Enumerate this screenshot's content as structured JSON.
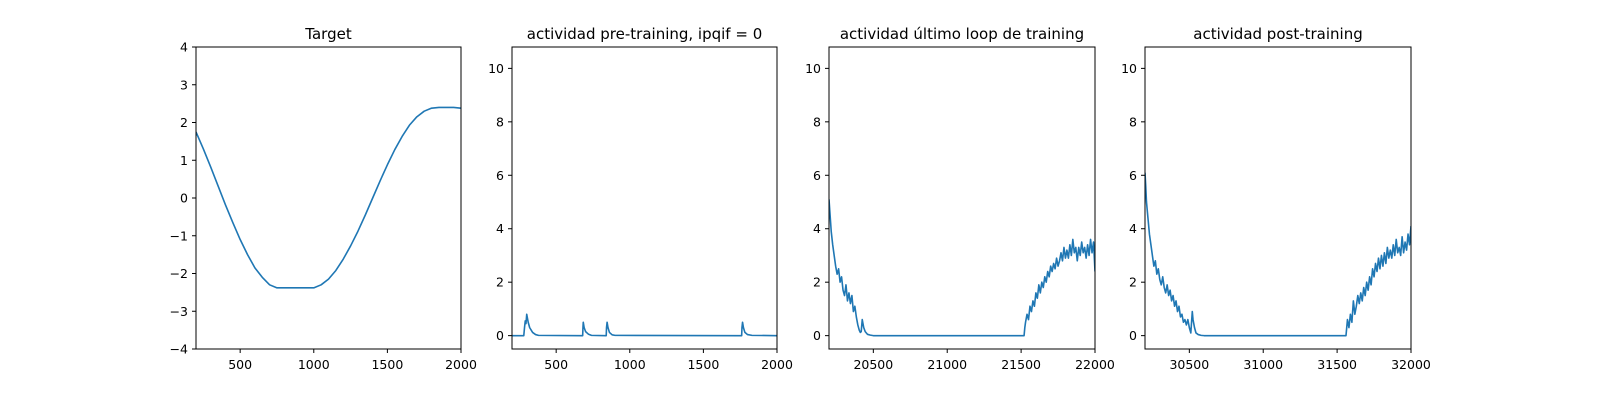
{
  "chart_data": [
    {
      "type": "line",
      "title": "Target",
      "xlabel": "",
      "ylabel": "",
      "xlim": [
        200,
        2000
      ],
      "ylim": [
        -4,
        4
      ],
      "xticks": [
        500,
        1000,
        1500,
        2000
      ],
      "yticks": [
        -4,
        -3,
        -2,
        -1,
        0,
        1,
        2,
        3,
        4
      ],
      "grid": false,
      "color": "#1f77b4",
      "series": [
        {
          "x": [
            200,
            250,
            300,
            350,
            400,
            450,
            500,
            550,
            600,
            650,
            700,
            750,
            800,
            850,
            900,
            950,
            1000,
            1050,
            1100,
            1150,
            1200,
            1250,
            1300,
            1350,
            1400,
            1450,
            1500,
            1550,
            1600,
            1650,
            1700,
            1750,
            1800,
            1850,
            1900,
            1950,
            2000
          ],
          "y": [
            1.75,
            1.3,
            0.82,
            0.32,
            -0.18,
            -0.65,
            -1.1,
            -1.5,
            -1.85,
            -2.1,
            -2.3,
            -2.38,
            -2.38,
            -2.38,
            -2.38,
            -2.38,
            -2.38,
            -2.3,
            -2.15,
            -1.92,
            -1.62,
            -1.27,
            -0.88,
            -0.45,
            0.0,
            0.45,
            0.88,
            1.28,
            1.63,
            1.93,
            2.15,
            2.3,
            2.38,
            2.4,
            2.4,
            2.4,
            2.38
          ]
        }
      ]
    },
    {
      "type": "line",
      "title": "actividad pre-training, ipqif = 0",
      "xlabel": "",
      "ylabel": "",
      "xlim": [
        200,
        2000
      ],
      "ylim": [
        -0.5,
        10.8
      ],
      "xticks": [
        500,
        1000,
        1500,
        2000
      ],
      "yticks": [
        0,
        2,
        4,
        6,
        8,
        10
      ],
      "grid": false,
      "color": "#1f77b4",
      "series": [
        {
          "x": [
            200,
            280,
            285,
            290,
            295,
            300,
            310,
            320,
            340,
            360,
            380,
            680,
            682,
            684,
            690,
            700,
            720,
            740,
            840,
            842,
            846,
            852,
            862,
            880,
            900,
            1760,
            1762,
            1766,
            1772,
            1782,
            1800,
            1830,
            2000
          ],
          "y": [
            0,
            0,
            0.3,
            0.55,
            0.45,
            0.8,
            0.5,
            0.3,
            0.12,
            0.04,
            0.01,
            0,
            0.3,
            0.5,
            0.3,
            0.15,
            0.05,
            0.01,
            0,
            0.3,
            0.5,
            0.3,
            0.12,
            0.03,
            0.01,
            0,
            0.3,
            0.5,
            0.3,
            0.12,
            0.04,
            0.01,
            0
          ]
        }
      ]
    },
    {
      "type": "line",
      "title": "actividad último loop de training",
      "xlabel": "",
      "ylabel": "",
      "xlim": [
        20200,
        22000
      ],
      "ylim": [
        -0.5,
        10.8
      ],
      "xticks": [
        20500,
        21000,
        21500,
        22000
      ],
      "yticks": [
        0,
        2,
        4,
        6,
        8,
        10
      ],
      "grid": false,
      "color": "#1f77b4",
      "series": [
        {
          "x": [
            20200,
            20205,
            20215,
            20225,
            20235,
            20245,
            20255,
            20265,
            20275,
            20285,
            20295,
            20305,
            20315,
            20325,
            20335,
            20345,
            20355,
            20365,
            20375,
            20385,
            20395,
            20405,
            20412,
            20418,
            20425,
            20435,
            20445,
            20460,
            20480,
            20500,
            20520,
            20550,
            21000,
            21400,
            21520,
            21525,
            21530,
            21540,
            21550,
            21560,
            21570,
            21580,
            21590,
            21600,
            21610,
            21620,
            21630,
            21640,
            21650,
            21660,
            21670,
            21680,
            21690,
            21700,
            21710,
            21720,
            21730,
            21740,
            21750,
            21760,
            21770,
            21780,
            21790,
            21800,
            21810,
            21820,
            21830,
            21840,
            21850,
            21860,
            21870,
            21880,
            21890,
            21900,
            21910,
            21920,
            21930,
            21940,
            21950,
            21960,
            21970,
            21980,
            21990,
            22000
          ],
          "y": [
            5.1,
            4.7,
            3.9,
            3.4,
            3.0,
            2.6,
            2.3,
            2.5,
            2.0,
            2.2,
            1.7,
            1.5,
            1.9,
            1.3,
            1.6,
            1.2,
            1.5,
            0.9,
            1.1,
            0.7,
            0.4,
            0.2,
            0.12,
            0.15,
            0.6,
            0.3,
            0.15,
            0.05,
            0.02,
            0,
            0,
            0,
            0,
            0,
            0,
            0.3,
            0.5,
            0.8,
            0.6,
            1.1,
            0.9,
            1.3,
            1.1,
            1.6,
            1.4,
            1.9,
            1.6,
            2.0,
            1.8,
            2.2,
            2.0,
            2.4,
            2.2,
            2.6,
            2.4,
            2.7,
            2.5,
            2.9,
            2.6,
            2.8,
            3.1,
            2.8,
            3.3,
            2.9,
            3.2,
            2.9,
            3.4,
            3.0,
            3.6,
            3.1,
            3.3,
            2.8,
            3.3,
            3.0,
            3.5,
            3.1,
            3.3,
            2.9,
            3.4,
            3.0,
            3.6,
            3.1,
            3.5,
            2.4
          ]
        }
      ]
    },
    {
      "type": "line",
      "title": "actividad post-training",
      "xlabel": "",
      "ylabel": "",
      "xlim": [
        30200,
        32000
      ],
      "ylim": [
        -0.5,
        10.8
      ],
      "xticks": [
        30500,
        31000,
        31500,
        32000
      ],
      "yticks": [
        0,
        2,
        4,
        6,
        8,
        10
      ],
      "grid": false,
      "color": "#1f77b4",
      "series": [
        {
          "x": [
            30200,
            30205,
            30210,
            30220,
            30230,
            30240,
            30250,
            30260,
            30270,
            30280,
            30290,
            30300,
            30310,
            30320,
            30330,
            30340,
            30350,
            30360,
            30370,
            30380,
            30390,
            30400,
            30410,
            30420,
            30430,
            30440,
            30450,
            30460,
            30470,
            30480,
            30490,
            30500,
            30510,
            30515,
            30520,
            30525,
            30535,
            30545,
            30560,
            30580,
            30600,
            30650,
            31000,
            31400,
            31560,
            31565,
            31570,
            31580,
            31590,
            31600,
            31610,
            31620,
            31630,
            31640,
            31650,
            31660,
            31670,
            31680,
            31690,
            31700,
            31710,
            31720,
            31730,
            31740,
            31750,
            31760,
            31770,
            31780,
            31790,
            31800,
            31810,
            31820,
            31830,
            31840,
            31850,
            31860,
            31870,
            31880,
            31890,
            31900,
            31910,
            31920,
            31930,
            31940,
            31950,
            31960,
            31970,
            31980,
            31990,
            32000
          ],
          "y": [
            6.1,
            5.6,
            5.0,
            4.4,
            3.8,
            3.4,
            3.0,
            2.6,
            2.8,
            2.3,
            2.5,
            2.1,
            1.9,
            2.2,
            1.8,
            1.6,
            1.9,
            1.5,
            1.7,
            1.3,
            1.5,
            1.1,
            1.3,
            0.9,
            1.1,
            0.7,
            0.8,
            0.5,
            0.6,
            0.4,
            0.6,
            0.3,
            0.1,
            0.5,
            0.9,
            0.6,
            0.3,
            0.1,
            0.04,
            0.01,
            0,
            0,
            0,
            0,
            0,
            0.3,
            0.6,
            0.3,
            0.8,
            0.5,
            1.3,
            0.8,
            1.1,
            1.5,
            1.2,
            1.6,
            1.3,
            1.8,
            1.5,
            2.0,
            1.7,
            2.2,
            1.9,
            2.5,
            2.2,
            2.7,
            2.4,
            2.9,
            2.5,
            3.0,
            2.6,
            3.1,
            2.7,
            3.3,
            2.9,
            3.2,
            2.9,
            3.4,
            3.0,
            3.6,
            3.1,
            3.3,
            3.0,
            3.7,
            3.1,
            3.5,
            3.2,
            3.8,
            3.4,
            4.1
          ]
        }
      ]
    }
  ]
}
